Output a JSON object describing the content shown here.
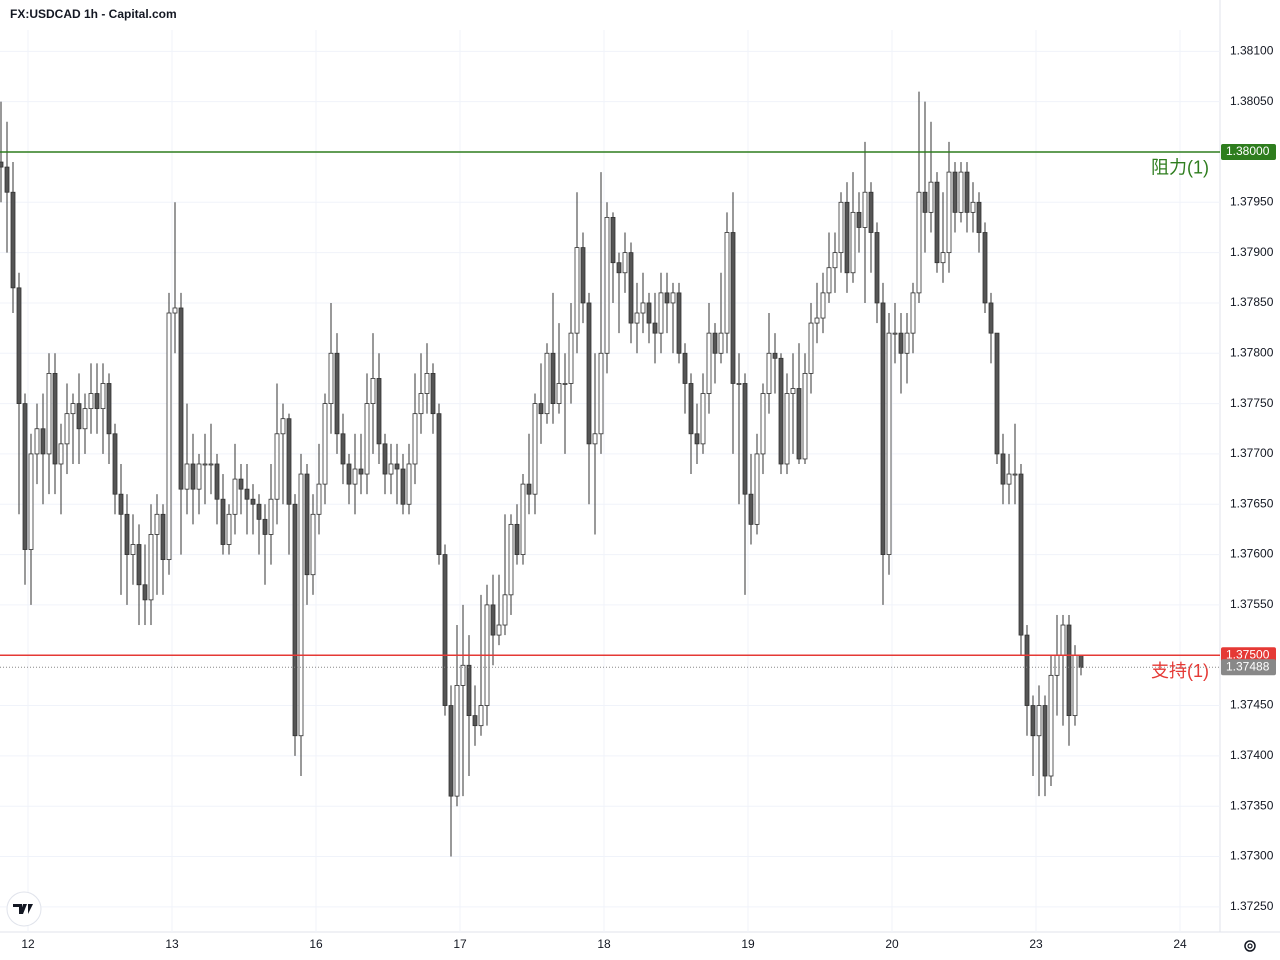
{
  "chart_data": {
    "type": "candlestick",
    "title": "FX:USDCAD 1h - Capital.com",
    "x": [
      0,
      1,
      2,
      3,
      4,
      5,
      6,
      7,
      8,
      9,
      10,
      11,
      12,
      13,
      14,
      15,
      16,
      17,
      18,
      19,
      20,
      21,
      22,
      23,
      24,
      25,
      26,
      27,
      28,
      29,
      30,
      31,
      32,
      33,
      34,
      35,
      36,
      37,
      38,
      39,
      40,
      41,
      42,
      43,
      44,
      45,
      46,
      47,
      48,
      49,
      50,
      51,
      52,
      53,
      54,
      55,
      56,
      57,
      58,
      59,
      60,
      61,
      62,
      63,
      64,
      65,
      66,
      67,
      68,
      69,
      70,
      71,
      72,
      73,
      74,
      75,
      76,
      77,
      78,
      79,
      80,
      81,
      82,
      83,
      84,
      85,
      86,
      87,
      88,
      89,
      90,
      91,
      92,
      93,
      94,
      95,
      96,
      97,
      98,
      99,
      100,
      101,
      102,
      103,
      104,
      105,
      106,
      107,
      108,
      109,
      110,
      111,
      112,
      113,
      114,
      115,
      116,
      117,
      118,
      119,
      120,
      121,
      122,
      123,
      124,
      125,
      126,
      127,
      128,
      129,
      130,
      131,
      132,
      133,
      134,
      135,
      136,
      137,
      138,
      139,
      140,
      141,
      142,
      143,
      144,
      145,
      146,
      147,
      148,
      149,
      150,
      151,
      152,
      153,
      154,
      155,
      156,
      157,
      158,
      159,
      160,
      161,
      162,
      163,
      164,
      165,
      166,
      167,
      168,
      169,
      170,
      171,
      172,
      173,
      174,
      175,
      176,
      177,
      178,
      179,
      180
    ],
    "open": [
      1.3799,
      1.37985,
      1.3796,
      1.37865,
      1.3775,
      1.37605,
      1.377,
      1.37725,
      1.377,
      1.3778,
      1.3769,
      1.3771,
      1.3774,
      1.3775,
      1.37725,
      1.37745,
      1.3776,
      1.37745,
      1.3777,
      1.3772,
      1.3766,
      1.3764,
      1.376,
      1.3761,
      1.3757,
      1.37555,
      1.3762,
      1.3764,
      1.37595,
      1.3784,
      1.37845,
      1.37665,
      1.3769,
      1.37665,
      1.3769,
      1.3769,
      1.3769,
      1.37655,
      1.3761,
      1.3764,
      1.37675,
      1.37665,
      1.37655,
      1.3765,
      1.37635,
      1.3762,
      1.37655,
      1.3772,
      1.37735,
      1.3765,
      1.3742,
      1.3768,
      1.3758,
      1.3764,
      1.3767,
      1.3775,
      1.378,
      1.3772,
      1.3769,
      1.3767,
      1.37685,
      1.3768,
      1.3775,
      1.37775,
      1.3771,
      1.3768,
      1.3769,
      1.37685,
      1.3765,
      1.3769,
      1.3774,
      1.3776,
      1.3778,
      1.3774,
      1.376,
      1.3745,
      1.3736,
      1.3747,
      1.3749,
      1.3744,
      1.3743,
      1.3745,
      1.3755,
      1.3752,
      1.3753,
      1.3756,
      1.3763,
      1.376,
      1.3767,
      1.3766,
      1.3775,
      1.3774,
      1.378,
      1.3775,
      1.3777,
      1.3777,
      1.3782,
      1.37905,
      1.3785,
      1.3771,
      1.3772,
      1.378,
      1.37935,
      1.3789,
      1.3788,
      1.379,
      1.3783,
      1.3784,
      1.3785,
      1.3783,
      1.3782,
      1.3786,
      1.3785,
      1.3786,
      1.378,
      1.3777,
      1.3772,
      1.3771,
      1.3776,
      1.3782,
      1.378,
      1.3782,
      1.3792,
      1.3777,
      1.3777,
      1.3766,
      1.3763,
      1.377,
      1.3776,
      1.378,
      1.37795,
      1.3769,
      1.3776,
      1.37765,
      1.37695,
      1.3778,
      1.3783,
      1.37835,
      1.3786,
      1.37885,
      1.379,
      1.3795,
      1.3788,
      1.3794,
      1.37925,
      1.3796,
      1.3792,
      1.3785,
      1.376,
      1.3782,
      1.3782,
      1.378,
      1.3782,
      1.3786,
      1.3796,
      1.3794,
      1.3797,
      1.3789,
      1.379,
      1.3798,
      1.3794,
      1.3798,
      1.3794,
      1.3795,
      1.3792,
      1.3785,
      1.3782,
      1.377,
      1.3767,
      1.3768,
      1.3768,
      1.3752,
      1.3745,
      1.3742,
      1.3745,
      1.3738,
      1.3748,
      1.375,
      1.3753,
      1.3744,
      1.375
    ],
    "high": [
      1.3805,
      1.3803,
      1.3799,
      1.3788,
      1.3776,
      1.3772,
      1.3775,
      1.3776,
      1.378,
      1.378,
      1.3773,
      1.3777,
      1.3776,
      1.3778,
      1.3776,
      1.3779,
      1.3779,
      1.3779,
      1.3778,
      1.3773,
      1.3769,
      1.3766,
      1.3764,
      1.3763,
      1.3761,
      1.3765,
      1.3766,
      1.3765,
      1.3786,
      1.3795,
      1.3786,
      1.3775,
      1.3772,
      1.377,
      1.3772,
      1.3773,
      1.377,
      1.3768,
      1.3765,
      1.3771,
      1.3769,
      1.3769,
      1.3767,
      1.3766,
      1.3765,
      1.3769,
      1.3777,
      1.3775,
      1.3774,
      1.3766,
      1.377,
      1.3769,
      1.3766,
      1.3771,
      1.3776,
      1.3785,
      1.3782,
      1.3774,
      1.377,
      1.3772,
      1.3772,
      1.3778,
      1.3782,
      1.378,
      1.3772,
      1.3771,
      1.3771,
      1.377,
      1.3771,
      1.3778,
      1.378,
      1.3781,
      1.3779,
      1.3775,
      1.3761,
      1.3747,
      1.3753,
      1.3755,
      1.3752,
      1.3747,
      1.3756,
      1.3757,
      1.3758,
      1.3758,
      1.3764,
      1.3764,
      1.3765,
      1.3768,
      1.3772,
      1.3776,
      1.3779,
      1.3781,
      1.3786,
      1.3783,
      1.378,
      1.3785,
      1.3796,
      1.3792,
      1.3786,
      1.378,
      1.3798,
      1.3795,
      1.3794,
      1.379,
      1.3792,
      1.3791,
      1.3787,
      1.3788,
      1.3786,
      1.3786,
      1.3788,
      1.3788,
      1.3787,
      1.3787,
      1.3781,
      1.3778,
      1.3775,
      1.3778,
      1.3785,
      1.3783,
      1.3788,
      1.3794,
      1.3796,
      1.378,
      1.3778,
      1.377,
      1.3772,
      1.3777,
      1.3784,
      1.3782,
      1.378,
      1.3778,
      1.378,
      1.3781,
      1.378,
      1.3785,
      1.3787,
      1.3788,
      1.3792,
      1.3792,
      1.3796,
      1.3797,
      1.3798,
      1.3796,
      1.3801,
      1.3797,
      1.3793,
      1.3787,
      1.3784,
      1.3785,
      1.3784,
      1.3784,
      1.3787,
      1.3806,
      1.3805,
      1.3803,
      1.3798,
      1.3796,
      1.3801,
      1.3799,
      1.3799,
      1.3799,
      1.3797,
      1.3796,
      1.3793,
      1.3786,
      1.3782,
      1.3772,
      1.377,
      1.3773,
      1.3769,
      1.3753,
      1.3746,
      1.3747,
      1.3746,
      1.375,
      1.3754,
      1.3754,
      1.3754,
      1.3751,
      1.375
    ],
    "low": [
      1.3795,
      1.379,
      1.3784,
      1.3764,
      1.3757,
      1.3755,
      1.3767,
      1.3765,
      1.3766,
      1.3766,
      1.3764,
      1.3768,
      1.3769,
      1.3769,
      1.377,
      1.3772,
      1.3772,
      1.377,
      1.3769,
      1.3764,
      1.3756,
      1.3755,
      1.3757,
      1.3753,
      1.3753,
      1.3753,
      1.3756,
      1.3756,
      1.3758,
      1.378,
      1.376,
      1.3764,
      1.3763,
      1.3764,
      1.3765,
      1.3766,
      1.3763,
      1.376,
      1.376,
      1.3762,
      1.3764,
      1.3762,
      1.3762,
      1.376,
      1.3757,
      1.3759,
      1.3763,
      1.3765,
      1.376,
      1.374,
      1.3738,
      1.3755,
      1.3756,
      1.3762,
      1.3765,
      1.3772,
      1.377,
      1.3767,
      1.3765,
      1.3764,
      1.3766,
      1.3766,
      1.377,
      1.3769,
      1.3766,
      1.3766,
      1.3765,
      1.3764,
      1.3764,
      1.3767,
      1.3772,
      1.3774,
      1.3772,
      1.3759,
      1.3744,
      1.373,
      1.3735,
      1.3736,
      1.3738,
      1.3741,
      1.3742,
      1.3743,
      1.3749,
      1.3751,
      1.3752,
      1.3754,
      1.3759,
      1.3759,
      1.3764,
      1.3764,
      1.3771,
      1.3773,
      1.3773,
      1.3774,
      1.377,
      1.3775,
      1.378,
      1.3783,
      1.3765,
      1.3762,
      1.377,
      1.3778,
      1.3785,
      1.3782,
      1.3786,
      1.3781,
      1.378,
      1.3782,
      1.3781,
      1.3779,
      1.378,
      1.3782,
      1.378,
      1.3779,
      1.3774,
      1.3768,
      1.3769,
      1.377,
      1.3774,
      1.3777,
      1.3779,
      1.378,
      1.377,
      1.3765,
      1.3756,
      1.3761,
      1.3762,
      1.3768,
      1.3774,
      1.3776,
      1.3768,
      1.3768,
      1.377,
      1.3769,
      1.3769,
      1.3776,
      1.3781,
      1.3782,
      1.3785,
      1.3786,
      1.3788,
      1.3786,
      1.3787,
      1.379,
      1.3785,
      1.3788,
      1.3783,
      1.3755,
      1.3758,
      1.3779,
      1.3776,
      1.3777,
      1.378,
      1.3785,
      1.379,
      1.3792,
      1.3788,
      1.3787,
      1.3788,
      1.3792,
      1.3793,
      1.3792,
      1.3792,
      1.379,
      1.3784,
      1.3779,
      1.3769,
      1.3765,
      1.3765,
      1.3765,
      1.375,
      1.3742,
      1.3738,
      1.3736,
      1.3736,
      1.3737,
      1.3744,
      1.3743,
      1.3741,
      1.3743,
      1.3748
    ],
    "close": [
      1.37985,
      1.3796,
      1.37865,
      1.3775,
      1.37605,
      1.377,
      1.37725,
      1.377,
      1.3778,
      1.3769,
      1.3771,
      1.3774,
      1.3775,
      1.37725,
      1.37745,
      1.3776,
      1.37745,
      1.3777,
      1.3772,
      1.3766,
      1.3764,
      1.376,
      1.3761,
      1.3757,
      1.37555,
      1.3762,
      1.3764,
      1.37595,
      1.3784,
      1.37845,
      1.37665,
      1.3769,
      1.37665,
      1.3769,
      1.3769,
      1.3769,
      1.37655,
      1.3761,
      1.3764,
      1.37675,
      1.37665,
      1.37655,
      1.3765,
      1.37635,
      1.3762,
      1.37655,
      1.3772,
      1.37735,
      1.3765,
      1.3742,
      1.3768,
      1.3758,
      1.3764,
      1.3767,
      1.3775,
      1.378,
      1.3772,
      1.3769,
      1.3767,
      1.37685,
      1.3768,
      1.3775,
      1.37775,
      1.3771,
      1.3768,
      1.3769,
      1.37685,
      1.3765,
      1.3769,
      1.3774,
      1.3776,
      1.3778,
      1.3774,
      1.376,
      1.3745,
      1.3736,
      1.3747,
      1.3749,
      1.3744,
      1.3743,
      1.3745,
      1.3755,
      1.3752,
      1.3753,
      1.3756,
      1.3763,
      1.376,
      1.3767,
      1.3766,
      1.3775,
      1.3774,
      1.378,
      1.3775,
      1.3777,
      1.3777,
      1.3782,
      1.37905,
      1.3785,
      1.3771,
      1.3772,
      1.378,
      1.37935,
      1.3789,
      1.3788,
      1.379,
      1.3783,
      1.3784,
      1.3785,
      1.3783,
      1.3782,
      1.3786,
      1.3785,
      1.3786,
      1.378,
      1.3777,
      1.3772,
      1.3771,
      1.3776,
      1.3782,
      1.378,
      1.3782,
      1.3792,
      1.3777,
      1.3777,
      1.3766,
      1.3763,
      1.377,
      1.3776,
      1.378,
      1.37795,
      1.3769,
      1.3776,
      1.37765,
      1.37695,
      1.3778,
      1.3783,
      1.37835,
      1.3786,
      1.37885,
      1.379,
      1.3795,
      1.3788,
      1.3794,
      1.37925,
      1.3796,
      1.3792,
      1.3785,
      1.376,
      1.3782,
      1.3782,
      1.378,
      1.3782,
      1.3786,
      1.3796,
      1.3794,
      1.3797,
      1.3789,
      1.379,
      1.3798,
      1.3794,
      1.3798,
      1.3794,
      1.3795,
      1.3792,
      1.3785,
      1.3782,
      1.377,
      1.3767,
      1.3768,
      1.3768,
      1.3752,
      1.3745,
      1.3742,
      1.3745,
      1.3738,
      1.3748,
      1.375,
      1.3753,
      1.3744,
      1.375,
      1.37488
    ],
    "up_color": "#ffffff",
    "down_color": "#555555",
    "xlim": [
      -0.1667,
      203.1667
    ],
    "xticks": [
      {
        "value": 4.5,
        "label": "12"
      },
      {
        "value": 28.5,
        "label": "13"
      },
      {
        "value": 52.5,
        "label": "16"
      },
      {
        "value": 76.5,
        "label": "17"
      },
      {
        "value": 100.5,
        "label": "18"
      },
      {
        "value": 124.5,
        "label": "19"
      },
      {
        "value": 148.5,
        "label": "20"
      },
      {
        "value": 172.5,
        "label": "23"
      },
      {
        "value": 196.5,
        "label": "24"
      }
    ],
    "ylim": [
      1.37225,
      1.38151
    ],
    "yticks": [
      {
        "value": 1.3725,
        "label": "1.37250"
      },
      {
        "value": 1.373,
        "label": "1.37300"
      },
      {
        "value": 1.3735,
        "label": "1.37350"
      },
      {
        "value": 1.374,
        "label": "1.37400"
      },
      {
        "value": 1.3745,
        "label": "1.37450"
      },
      {
        "value": 1.375,
        "label": "1.37500"
      },
      {
        "value": 1.3755,
        "label": "1.37550"
      },
      {
        "value": 1.376,
        "label": "1.37600"
      },
      {
        "value": 1.3765,
        "label": "1.37650"
      },
      {
        "value": 1.377,
        "label": "1.37700"
      },
      {
        "value": 1.3775,
        "label": "1.37750"
      },
      {
        "value": 1.378,
        "label": "1.37800"
      },
      {
        "value": 1.3785,
        "label": "1.37850"
      },
      {
        "value": 1.379,
        "label": "1.37900"
      },
      {
        "value": 1.3795,
        "label": "1.37950"
      },
      {
        "value": 1.38,
        "label": "1.38000"
      },
      {
        "value": 1.3805,
        "label": "1.38050"
      },
      {
        "value": 1.381,
        "label": "1.38100"
      }
    ],
    "grid": true,
    "levels": [
      {
        "name": "阻力(1)",
        "value": 1.38,
        "label": "1.38000",
        "color": "#2e7d1e"
      },
      {
        "name": "支持(1)",
        "value": 1.375,
        "label": "1.37500",
        "color": "#e53935"
      }
    ],
    "last_price": {
      "value": 1.37488,
      "label": "1.37488",
      "color": "#888888"
    }
  }
}
